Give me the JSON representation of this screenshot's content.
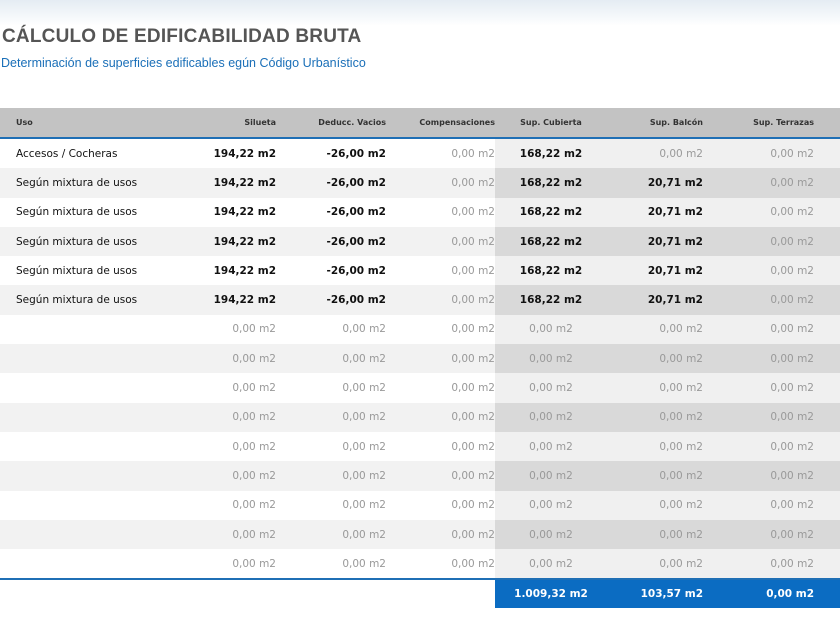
{
  "header": {
    "title": "CÁLCULO DE EDIFICABILIDAD BRUTA",
    "subtitle": "Determinación de superficies edificables egún Código Urbanístico"
  },
  "colors": {
    "accent": "#0b6cc2",
    "header_bg": "#c3c3c3",
    "title": "#555555",
    "subtitle": "#1a6fb8"
  },
  "table": {
    "columns": [
      "Uso",
      "Silueta",
      "Deducc. Vacios",
      "Compensaciones",
      "Sup. Cubierta",
      "Sup. Balcón",
      "Sup. Terrazas"
    ],
    "rows": [
      [
        "Accesos / Cocheras",
        "194,22 m2",
        "-26,00 m2",
        "0,00 m2",
        "168,22 m2",
        "0,00 m2",
        "0,00 m2"
      ],
      [
        "Según mixtura de usos",
        "194,22 m2",
        "-26,00 m2",
        "0,00 m2",
        "168,22 m2",
        "20,71 m2",
        "0,00 m2"
      ],
      [
        "Según mixtura de usos",
        "194,22 m2",
        "-26,00 m2",
        "0,00 m2",
        "168,22 m2",
        "20,71 m2",
        "0,00 m2"
      ],
      [
        "Según mixtura de usos",
        "194,22 m2",
        "-26,00 m2",
        "0,00 m2",
        "168,22 m2",
        "20,71 m2",
        "0,00 m2"
      ],
      [
        "Según mixtura de usos",
        "194,22 m2",
        "-26,00 m2",
        "0,00 m2",
        "168,22 m2",
        "20,71 m2",
        "0,00 m2"
      ],
      [
        "Según mixtura de usos",
        "194,22 m2",
        "-26,00 m2",
        "0,00 m2",
        "168,22 m2",
        "20,71 m2",
        "0,00 m2"
      ],
      [
        "",
        "0,00 m2",
        "0,00 m2",
        "0,00 m2",
        "0,00 m2",
        "0,00 m2",
        "0,00 m2"
      ],
      [
        "",
        "0,00 m2",
        "0,00 m2",
        "0,00 m2",
        "0,00 m2",
        "0,00 m2",
        "0,00 m2"
      ],
      [
        "",
        "0,00 m2",
        "0,00 m2",
        "0,00 m2",
        "0,00 m2",
        "0,00 m2",
        "0,00 m2"
      ],
      [
        "",
        "0,00 m2",
        "0,00 m2",
        "0,00 m2",
        "0,00 m2",
        "0,00 m2",
        "0,00 m2"
      ],
      [
        "",
        "0,00 m2",
        "0,00 m2",
        "0,00 m2",
        "0,00 m2",
        "0,00 m2",
        "0,00 m2"
      ],
      [
        "",
        "0,00 m2",
        "0,00 m2",
        "0,00 m2",
        "0,00 m2",
        "0,00 m2",
        "0,00 m2"
      ],
      [
        "",
        "0,00 m2",
        "0,00 m2",
        "0,00 m2",
        "0,00 m2",
        "0,00 m2",
        "0,00 m2"
      ],
      [
        "",
        "0,00 m2",
        "0,00 m2",
        "0,00 m2",
        "0,00 m2",
        "0,00 m2",
        "0,00 m2"
      ],
      [
        "",
        "0,00 m2",
        "0,00 m2",
        "0,00 m2",
        "0,00 m2",
        "0,00 m2",
        "0,00 m2"
      ]
    ],
    "totals": {
      "cubierta": "1.009,32 m2",
      "balcon": "103,57 m2",
      "terrazas": "0,00 m2"
    }
  }
}
